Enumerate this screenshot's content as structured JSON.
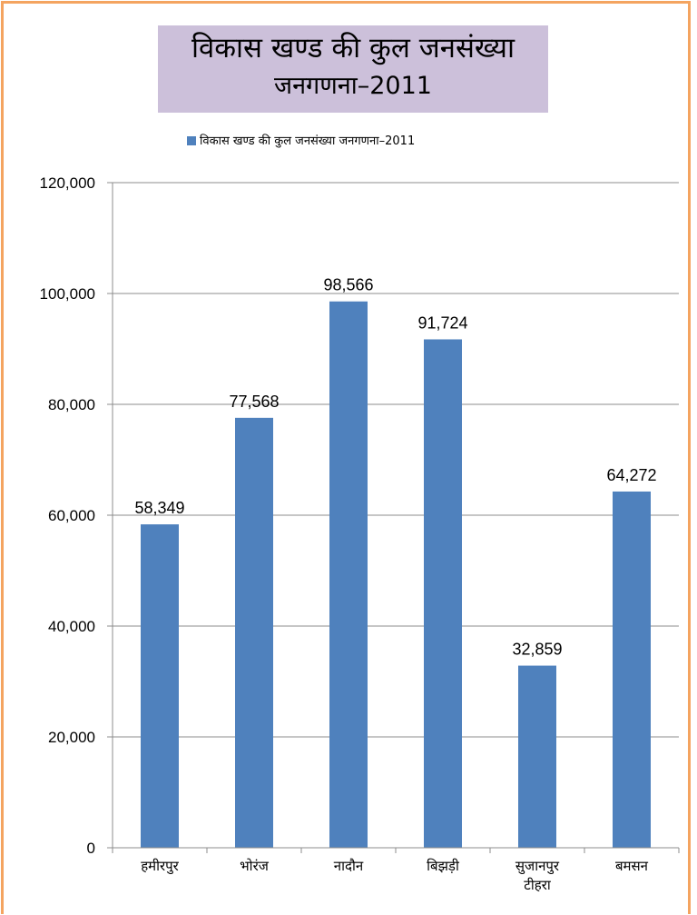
{
  "chart_data": {
    "type": "bar",
    "title_line1": "विकास खण्ड की कुल जनसंख्या",
    "title_line2": "जनगणना–2011",
    "categories": [
      [
        "हमीरपुर"
      ],
      [
        "भोरंज"
      ],
      [
        "नादौन"
      ],
      [
        "बिझड़ी"
      ],
      [
        "सुजानपुर",
        "टीहरा"
      ],
      [
        "बमसन"
      ]
    ],
    "series": [
      {
        "name": "विकास खण्ड की कुल जनसंख्या जनगणना–2011",
        "values": [
          58349,
          77568,
          98566,
          91724,
          32859,
          64272
        ],
        "value_labels": [
          "58,349",
          "77,568",
          "98,566",
          "91,724",
          "32,859",
          "64,272"
        ],
        "color": "#4f81bd"
      }
    ],
    "ylim": [
      0,
      120000
    ],
    "ytick_values": [
      0,
      20000,
      40000,
      60000,
      80000,
      100000,
      120000
    ],
    "ytick_labels": [
      "0",
      "20,000",
      "40,000",
      "60,000",
      "80,000",
      "100,000",
      "120,000"
    ],
    "xlabel": "",
    "ylabel": "",
    "grid": true,
    "legend_position": "top"
  },
  "colors": {
    "frame_border": "#f4a460",
    "title_background": "#ccc0da",
    "grid": "#8c8c8c",
    "axis": "#8c8c8c"
  }
}
